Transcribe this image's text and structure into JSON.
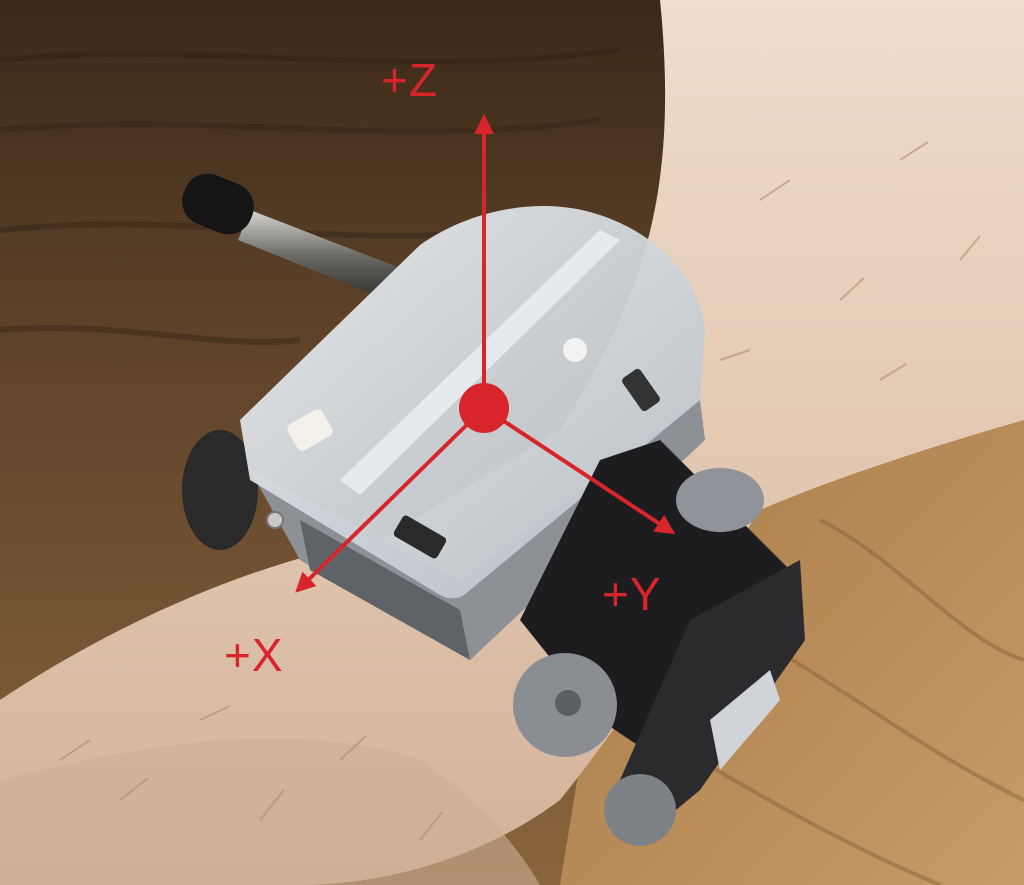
{
  "axes": {
    "z": {
      "label": "+Z"
    },
    "x": {
      "label": "+X"
    },
    "y": {
      "label": "+Y"
    }
  },
  "colors": {
    "axis_red": "#d8242b",
    "wood_dark": "#4a321d",
    "wood_light": "#b98a55",
    "skin": "#e8d2bf",
    "case_clear": "#d9dee2",
    "strap_black": "#1d1d1f",
    "plastic_grey": "#8a8d91"
  }
}
